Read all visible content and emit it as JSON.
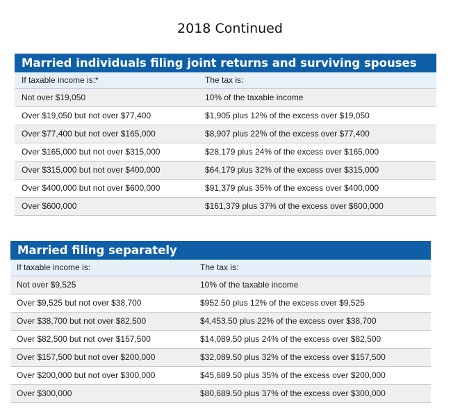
{
  "page_title": "2018 Continued",
  "joint": {
    "banner": "Married individuals filing joint returns and surviving spouses",
    "header_income": "If taxable income is:*",
    "header_tax": "The tax is:",
    "rows": [
      {
        "income": "Not over $19,050",
        "tax": "10% of the taxable income"
      },
      {
        "income": "Over $19,050 but not over $77,400",
        "tax": "$1,905 plus 12% of the excess over $19,050"
      },
      {
        "income": "Over $77,400 but not over $165,000",
        "tax": "$8,907 plus 22% of the excess over $77,400"
      },
      {
        "income": "Over $165,000 but not over $315,000",
        "tax": "$28,179 plus 24% of the excess over $165,000"
      },
      {
        "income": "Over $315,000 but not over $400,000",
        "tax": "$64,179 plus 32% of the excess over $315,000"
      },
      {
        "income": "Over $400,000 but not over $600,000",
        "tax": "$91,379 plus 35% of the excess over $400,000"
      },
      {
        "income": "Over $600,000",
        "tax": "$161,379 plus 37% of the excess over $600,000"
      }
    ]
  },
  "separate": {
    "banner": "Married filing separately",
    "header_income": "If taxable income is:",
    "header_tax": "The tax is:",
    "rows": [
      {
        "income": "Not over $9,525",
        "tax": "10% of the taxable income"
      },
      {
        "income": "Over $9,525 but not over $38,700",
        "tax": "$952.50 plus 12% of the excess over $9,525"
      },
      {
        "income": "Over $38,700 but not over $82,500",
        "tax": "$4,453.50 plus 22% of the excess over $38,700"
      },
      {
        "income": "Over $82,500 but not over $157,500",
        "tax": "$14,089.50 plus 24% of the excess over $82,500"
      },
      {
        "income": "Over $157,500 but not over $200,000",
        "tax": "$32,089.50 plus 32% of the excess over $157,500"
      },
      {
        "income": "Over $200,000 but not over $300,000",
        "tax": "$45,689.50 plus 35% of the excess over $200,000"
      },
      {
        "income": "Over $300,000",
        "tax": "$80,689.50 plus 37% of the excess over $300,000"
      }
    ]
  },
  "colors": {
    "banner_blue": "#0f5fa8",
    "header_tint": "#e5f0f9",
    "row_shade": "#efefef"
  }
}
